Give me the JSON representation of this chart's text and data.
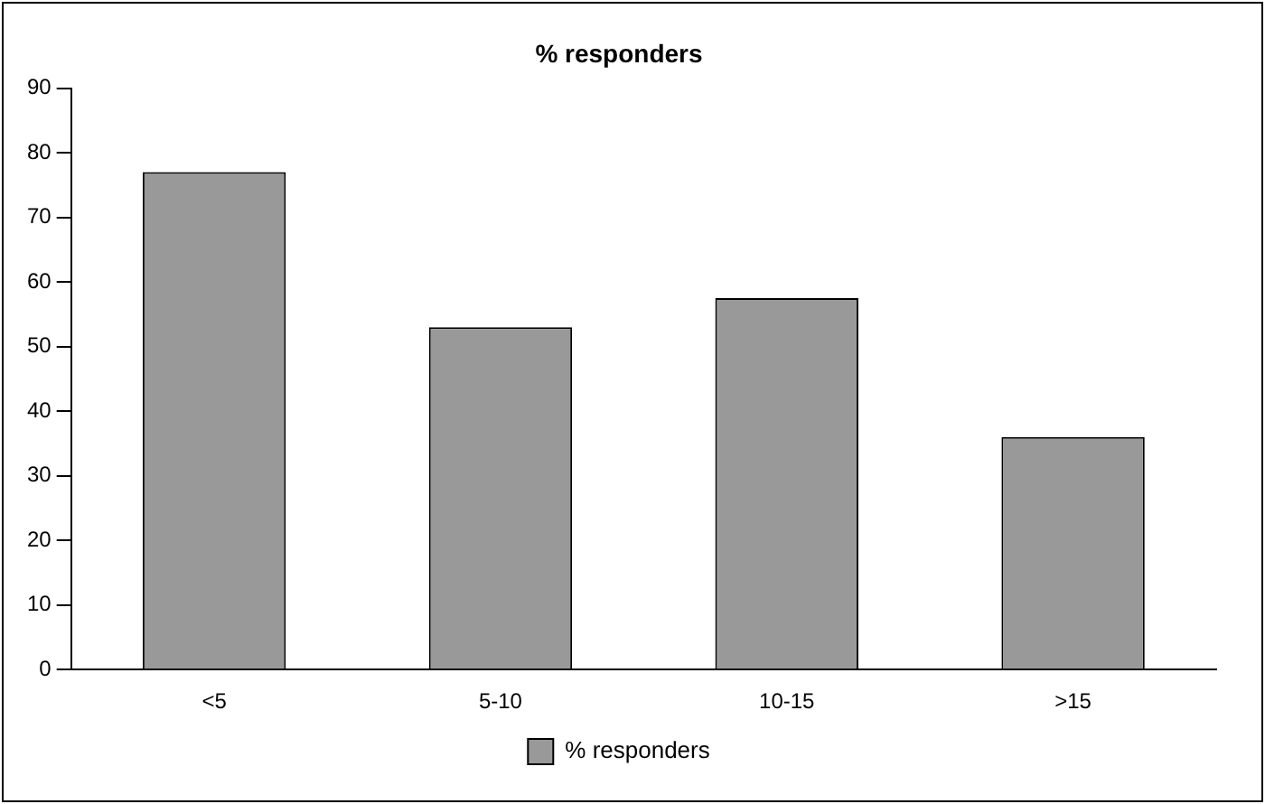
{
  "chart_data": {
    "type": "bar",
    "title": "% responders",
    "categories": [
      "<5",
      "5-10",
      "10-15",
      ">15"
    ],
    "series": [
      {
        "name": "% responders",
        "color": "#999999",
        "values": [
          77,
          53,
          57.5,
          36
        ]
      }
    ],
    "ylim": [
      0,
      90
    ],
    "yticks": [
      0,
      10,
      20,
      30,
      40,
      50,
      60,
      70,
      80,
      90
    ],
    "grid": false,
    "legend": "bottom"
  }
}
